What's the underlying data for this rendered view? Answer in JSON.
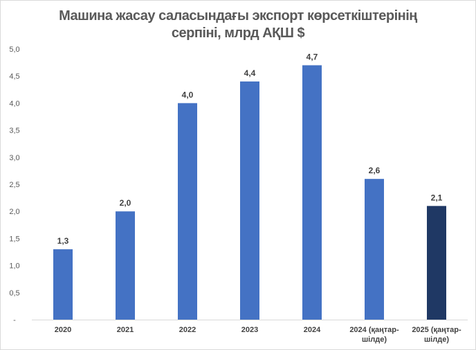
{
  "chart_data": {
    "type": "bar",
    "title_line1": "Машина жасау саласындағы экспорт көрсеткіштерінің",
    "title_line2": "серпіні, млрд АҚШ $",
    "categories": [
      [
        "2020"
      ],
      [
        "2021"
      ],
      [
        "2022"
      ],
      [
        "2023"
      ],
      [
        "2024"
      ],
      [
        "2024 (қаңтар-",
        "шілде)"
      ],
      [
        "2025 (қаңтар-",
        "шілде)"
      ]
    ],
    "values": [
      1.3,
      2.0,
      4.0,
      4.4,
      4.7,
      2.6,
      2.1
    ],
    "value_labels": [
      "1,3",
      "2,0",
      "4,0",
      "4,4",
      "4,7",
      "2,6",
      "2,1"
    ],
    "colors": [
      "#4472c4",
      "#4472c4",
      "#4472c4",
      "#4472c4",
      "#4472c4",
      "#4472c4",
      "#1f3864"
    ],
    "ylim": [
      0,
      5
    ],
    "yticks": [
      0,
      0.5,
      1,
      1.5,
      2,
      2.5,
      3,
      3.5,
      4,
      4.5,
      5
    ],
    "ytick_labels": [
      "-",
      "0,5",
      "1,0",
      "1,5",
      "2,0",
      "2,5",
      "3,0",
      "3,5",
      "4,0",
      "4,5",
      "5,0"
    ],
    "xlabel": "",
    "ylabel": "",
    "grid": false,
    "legend": "none"
  }
}
